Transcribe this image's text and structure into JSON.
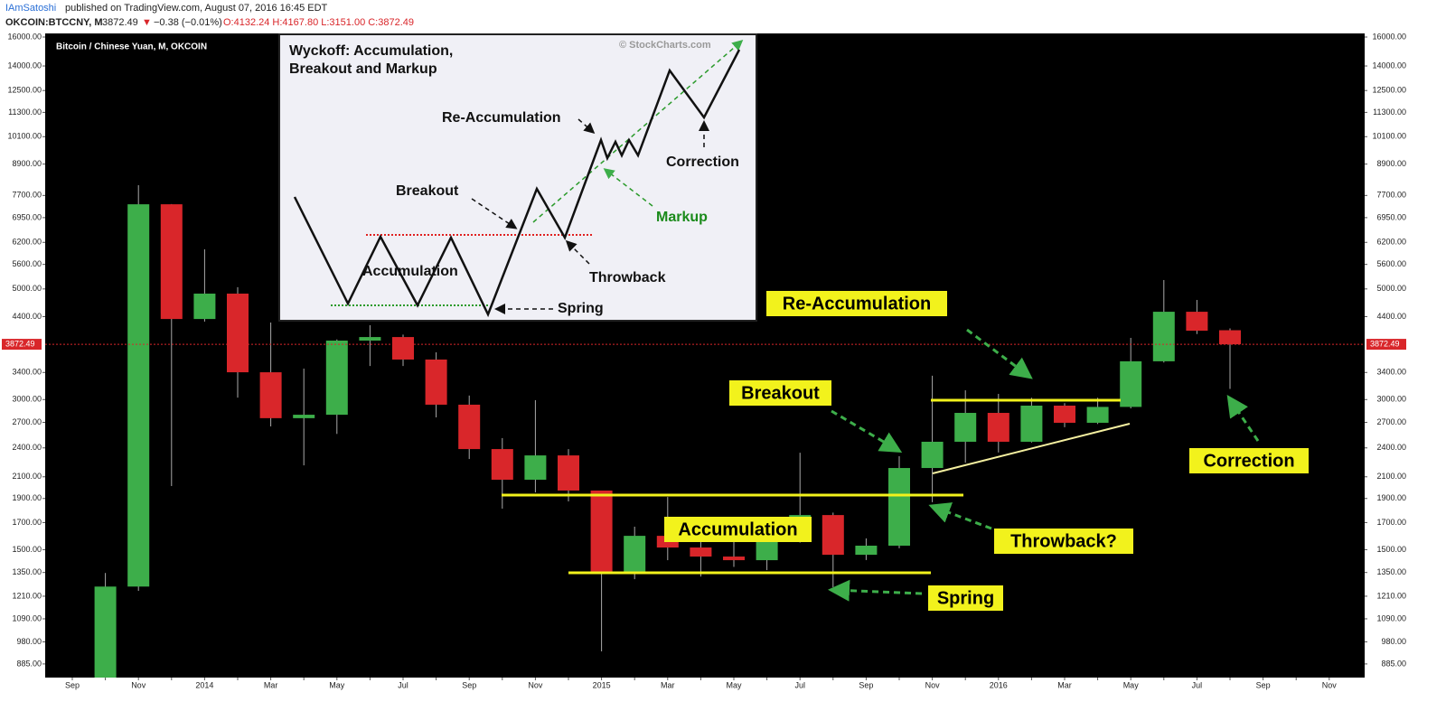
{
  "header": {
    "author": "IAmSatoshi",
    "published": "published on TradingView.com, August 07, 2016 16:45 EDT",
    "symbol": "OKCOIN:BTCCNY, M",
    "last": "3872.49",
    "change_arrow": "▼",
    "change": "−0.38 (−0.01%)",
    "ohlc": "O:4132.24 H:4167.80 L:3151.00 C:3872.49"
  },
  "inset": {
    "title": [
      "Wyckoff: Accumulation,",
      "Breakout and Markup"
    ],
    "credit": "© StockCharts.com",
    "labels": [
      "Re-Accumulation",
      "Correction",
      "Breakout",
      "Markup",
      "Accumulation",
      "Throwback",
      "Spring"
    ]
  },
  "chart_data": {
    "type": "candlestick",
    "title": "Bitcoin / Chinese Yuan, M, OKCOIN",
    "log_scale": true,
    "up_color": "#3dae4a",
    "down_color": "#d9262a",
    "categories": [
      "Sep",
      null,
      "Nov",
      null,
      "2014",
      null,
      "Mar",
      null,
      "May",
      null,
      "Jul",
      null,
      "Sep",
      null,
      "Nov",
      null,
      "2015",
      null,
      "Mar",
      null,
      "May",
      null,
      "Jul",
      null,
      "Sep",
      null,
      "Nov",
      null,
      "2016",
      null,
      "Mar",
      null,
      "May",
      null,
      "Jul",
      null,
      "Sep",
      null,
      "Nov"
    ],
    "open": [
      null,
      830,
      1265,
      7392,
      4352,
      4893,
      3403,
      2753,
      2797,
      3939,
      4004,
      3609,
      2930,
      2387,
      2072,
      2318,
      1971,
      1348,
      1599,
      1515,
      1453,
      1429,
      1566,
      1760,
      1465,
      1528,
      2187,
      2469,
      2821,
      2469,
      2917,
      2695,
      2900,
      3580,
      4500,
      4132.24,
      null,
      null,
      null
    ],
    "high": [
      null,
      1347,
      8072,
      7400,
      6003,
      5040,
      4282,
      3461,
      3960,
      4229,
      4050,
      3731,
      3056,
      2511,
      2992,
      2387,
      1971,
      1668,
      1913,
      1580,
      1560,
      1655,
      2347,
      1780,
      1580,
      2309,
      3349,
      3131,
      3080,
      3025,
      2950,
      3025,
      3989,
      5210,
      4752,
      4167.8,
      null,
      null,
      null
    ],
    "low": [
      null,
      800,
      1240,
      2012,
      4300,
      3027,
      2650,
      2214,
      2560,
      3503,
      3503,
      2763,
      2280,
      1813,
      1954,
      1875,
      938,
      1309,
      1429,
      1325,
      1385,
      1365,
      1550,
      1261,
      1430,
      1510,
      1868,
      2241,
      2350,
      2460,
      2640,
      2680,
      2880,
      3560,
      4060,
      3151,
      null,
      null,
      null
    ],
    "close": [
      null,
      1265,
      7392,
      4352,
      4893,
      3403,
      2753,
      2797,
      3939,
      4004,
      3609,
      2930,
      2387,
      2072,
      2318,
      1971,
      1348,
      1599,
      1515,
      1453,
      1429,
      1566,
      1760,
      1465,
      1528,
      2187,
      2469,
      2821,
      2469,
      2917,
      2695,
      2900,
      3580,
      4500,
      4123,
      3872.49,
      null,
      null,
      null
    ],
    "ylim": [
      831,
      16270
    ],
    "yticks": [
      {
        "value": 16000,
        "label": "16000.00"
      },
      {
        "value": 14000,
        "label": "14000.00"
      },
      {
        "value": 12500,
        "label": "12500.00"
      },
      {
        "value": 11300,
        "label": "11300.00"
      },
      {
        "value": 10100,
        "label": "10100.00"
      },
      {
        "value": 8900,
        "label": "8900.00"
      },
      {
        "value": 7700,
        "label": "7700.00"
      },
      {
        "value": 6950,
        "label": "6950.00"
      },
      {
        "value": 6200,
        "label": "6200.00"
      },
      {
        "value": 5600,
        "label": "5600.00"
      },
      {
        "value": 5000,
        "label": "5000.00"
      },
      {
        "value": 4400,
        "label": "4400.00"
      },
      {
        "value": 3400,
        "label": "3400.00"
      },
      {
        "value": 3000,
        "label": "3000.00"
      },
      {
        "value": 2700,
        "label": "2700.00"
      },
      {
        "value": 2400,
        "label": "2400.00"
      },
      {
        "value": 2100,
        "label": "2100.00"
      },
      {
        "value": 1900,
        "label": "1900.00"
      },
      {
        "value": 1700,
        "label": "1700.00"
      },
      {
        "value": 1500,
        "label": "1500.00"
      },
      {
        "value": 1350,
        "label": "1350.00"
      },
      {
        "value": 1210,
        "label": "1210.00"
      },
      {
        "value": 1090,
        "label": "1090.00"
      },
      {
        "value": 980,
        "label": "980.00"
      },
      {
        "value": 885,
        "label": "885.00"
      }
    ],
    "annotations": [
      "Re-Accumulation",
      "Breakout",
      "Accumulation",
      "Throwback?",
      "Spring",
      "Correction"
    ]
  }
}
